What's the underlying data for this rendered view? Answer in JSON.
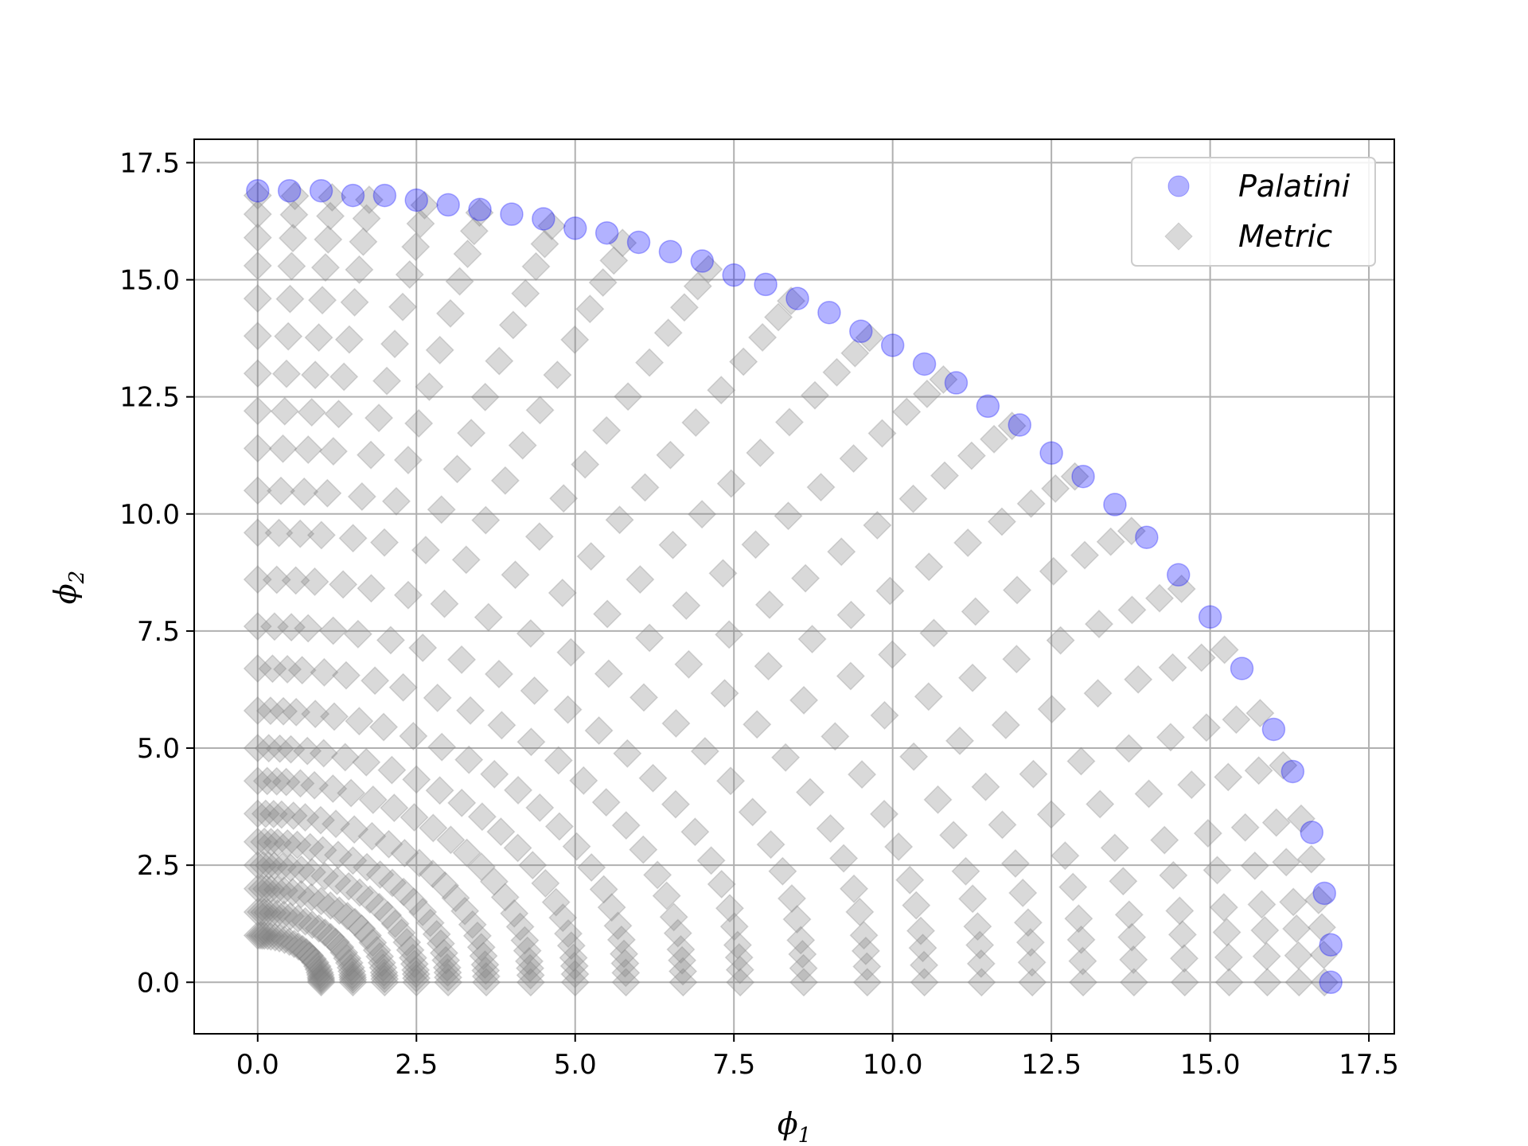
{
  "chart_data": {
    "type": "scatter",
    "title": "",
    "xlabel": "ϕ1",
    "ylabel": "ϕ2",
    "xlabel_parts": {
      "base": "ϕ",
      "sub": "1"
    },
    "ylabel_parts": {
      "base": "ϕ",
      "sub": "2"
    },
    "xlim": [
      -1.0,
      17.9
    ],
    "ylim": [
      -1.1,
      18.0
    ],
    "xticks": [
      0.0,
      2.5,
      5.0,
      7.5,
      10.0,
      12.5,
      15.0,
      17.5
    ],
    "yticks": [
      0.0,
      2.5,
      5.0,
      7.5,
      10.0,
      12.5,
      15.0,
      17.5
    ],
    "xtick_labels": [
      "0.0",
      "2.5",
      "5.0",
      "7.5",
      "10.0",
      "12.5",
      "15.0",
      "17.5"
    ],
    "ytick_labels": [
      "0.0",
      "2.5",
      "5.0",
      "7.5",
      "10.0",
      "12.5",
      "15.0",
      "17.5"
    ],
    "grid": true,
    "legend_position": "top-right",
    "series": [
      {
        "name": "Palatini",
        "marker": "circle",
        "color": "#0000ff",
        "alpha": 0.3,
        "description": "points along the quarter circle of radius ~16.9 from (0,16.9) to (16.9,0)",
        "x": [
          0.0,
          0.5,
          1.0,
          1.5,
          2.0,
          2.5,
          3.0,
          3.5,
          4.0,
          4.5,
          5.0,
          5.5,
          6.0,
          6.5,
          7.0,
          7.5,
          8.0,
          8.5,
          9.0,
          9.5,
          10.0,
          10.5,
          11.0,
          11.5,
          12.0,
          12.5,
          13.0,
          13.5,
          14.0,
          14.5,
          15.0,
          15.5,
          16.0,
          16.3,
          16.6,
          16.8,
          16.9,
          16.9
        ],
        "y": [
          16.9,
          16.9,
          16.9,
          16.8,
          16.8,
          16.7,
          16.6,
          16.5,
          16.4,
          16.3,
          16.1,
          16.0,
          15.8,
          15.6,
          15.4,
          15.1,
          14.9,
          14.6,
          14.3,
          13.9,
          13.6,
          13.2,
          12.8,
          12.3,
          11.9,
          11.3,
          10.8,
          10.2,
          9.5,
          8.7,
          7.8,
          6.7,
          5.4,
          4.5,
          3.2,
          1.9,
          0.8,
          0.0
        ]
      },
      {
        "name": "Metric",
        "marker": "diamond",
        "color": "#808080",
        "alpha": 0.3,
        "description": "points filling the interior of the quarter disk along radial rays and concentric arcs, dense near the axes",
        "radii": [
          1.0,
          1.5,
          2.0,
          2.5,
          3.0,
          3.6,
          4.3,
          5.0,
          5.8,
          6.7,
          7.6,
          8.6,
          9.6,
          10.5,
          11.4,
          12.2,
          13.0,
          13.8,
          14.6,
          15.3,
          15.9,
          16.4,
          16.8
        ],
        "angles_deg": [
          0,
          2,
          4,
          6,
          9,
          12,
          16,
          20,
          25,
          30,
          35,
          40,
          45,
          50,
          55,
          60,
          65,
          70,
          74,
          78,
          81,
          84,
          86,
          88,
          90
        ]
      }
    ]
  }
}
